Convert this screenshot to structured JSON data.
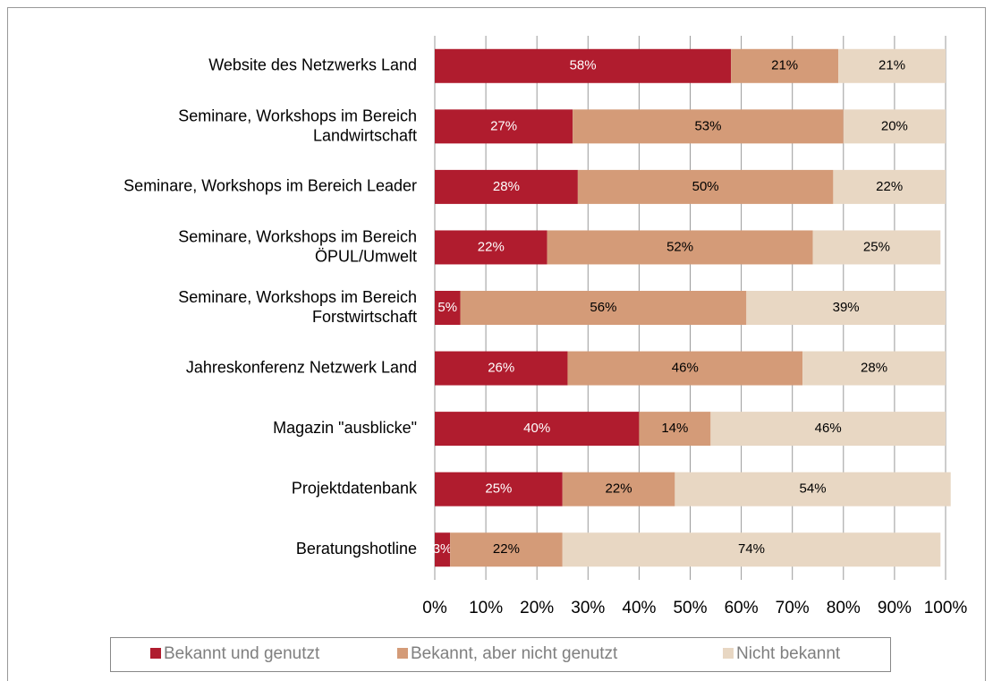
{
  "chart_data": {
    "type": "stacked_bar_horizontal",
    "categories": [
      "Website des Netzwerks Land",
      "Seminare, Workshops im Bereich\nLandwirtschaft",
      "Seminare, Workshops im Bereich Leader",
      "Seminare, Workshops im Bereich\nÖPUL/Umwelt",
      "Seminare, Workshops im Bereich\nForstwirtschaft",
      "Jahreskonferenz Netzwerk Land",
      "Magazin \"ausblicke\"",
      "Projektdatenbank",
      "Beratungshotline"
    ],
    "series": [
      {
        "name": "Bekannt und genutzt",
        "color": "#b01c2e",
        "label_color": "#ffffff",
        "values": [
          58,
          27,
          28,
          22,
          5,
          26,
          40,
          25,
          3
        ],
        "value_labels": [
          "58%",
          "27%",
          "28%",
          "22%",
          "5%",
          "26%",
          "40%",
          "25%",
          "3%"
        ]
      },
      {
        "name": "Bekannt, aber nicht genutzt",
        "color": "#d49b78",
        "label_color": "#000000",
        "values": [
          21,
          53,
          50,
          52,
          56,
          46,
          14,
          22,
          22
        ],
        "value_labels": [
          "21%",
          "53%",
          "50%",
          "52%",
          "56%",
          "46%",
          "14%",
          "22%",
          "22%"
        ]
      },
      {
        "name": "Nicht bekannt",
        "color": "#e8d7c3",
        "label_color": "#000000",
        "values": [
          21,
          20,
          22,
          25,
          39,
          28,
          46,
          54,
          74
        ],
        "value_labels": [
          "21%",
          "20%",
          "22%",
          "25%",
          "39%",
          "28%",
          "46%",
          "54%",
          "74%"
        ]
      }
    ],
    "xlim": [
      0,
      100
    ],
    "xticks": [
      {
        "value": 0,
        "label": "0%"
      },
      {
        "value": 10,
        "label": "10%"
      },
      {
        "value": 20,
        "label": "20%"
      },
      {
        "value": 30,
        "label": "30%"
      },
      {
        "value": 40,
        "label": "40%"
      },
      {
        "value": 50,
        "label": "50%"
      },
      {
        "value": 60,
        "label": "60%"
      },
      {
        "value": 70,
        "label": "70%"
      },
      {
        "value": 80,
        "label": "80%"
      },
      {
        "value": 90,
        "label": "90%"
      },
      {
        "value": 100,
        "label": "100%"
      }
    ],
    "grid": true,
    "legend": "bottom"
  }
}
